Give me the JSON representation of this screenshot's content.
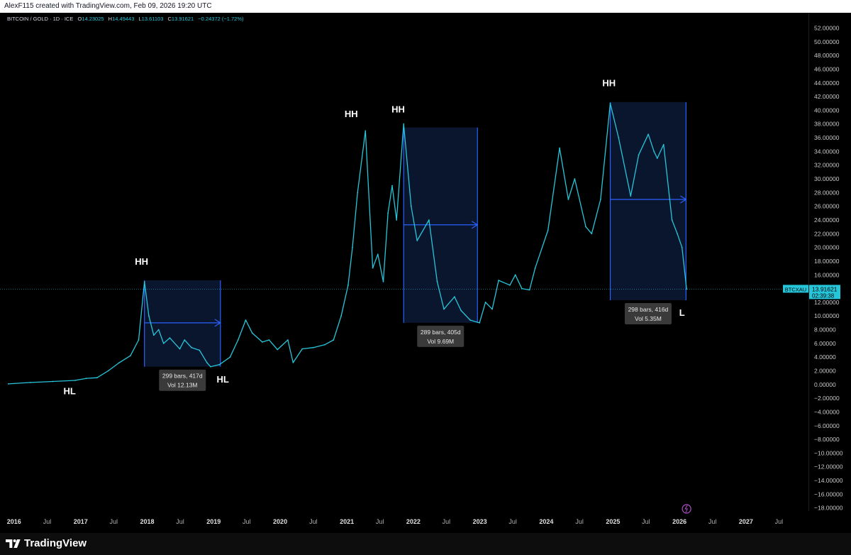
{
  "header": {
    "attribution": "AlexF115 created with TradingView.com, Feb 09, 2026 19:20 UTC"
  },
  "legend": {
    "symbol": "BITCOIN / GOLD · 1D · ICE",
    "o_label": "O",
    "o": "14.23025",
    "h_label": "H",
    "h": "14.49443",
    "l_label": "L",
    "l": "13.61103",
    "c_label": "C",
    "c": "13.91621",
    "change": "−0.24372 (−1.72%)"
  },
  "price_tag": {
    "symbol": "BTCXAU",
    "value": "13.91621",
    "countdown": "02:39:38"
  },
  "footer": {
    "brand": "TradingView"
  },
  "colors": {
    "price_line": "#26c6da",
    "box_fill": "#0b1733",
    "box_border": "#2962ff",
    "background": "#000000"
  },
  "chart_data": {
    "type": "line",
    "series": [
      {
        "x": [
          "2015-12-01",
          "2016-04-01",
          "2016-08-01",
          "2016-12-01",
          "2017-02-01",
          "2017-04-01",
          "2017-06-01",
          "2017-08-01",
          "2017-10-01",
          "2017-11-15",
          "2017-12-17",
          "2018-01-10",
          "2018-02-06",
          "2018-03-05",
          "2018-04-01",
          "2018-05-05",
          "2018-06-29",
          "2018-07-25",
          "2018-09-01",
          "2018-10-15",
          "2018-11-25",
          "2018-12-15",
          "2019-02-01",
          "2019-04-01",
          "2019-05-15",
          "2019-06-26",
          "2019-08-01",
          "2019-09-25",
          "2019-11-01",
          "2019-12-17",
          "2020-02-12",
          "2020-03-12",
          "2020-05-01",
          "2020-07-01",
          "2020-09-01",
          "2020-10-20",
          "2020-12-01",
          "2021-01-08",
          "2021-02-01",
          "2021-03-01",
          "2021-04-13",
          "2021-05-23",
          "2021-06-20",
          "2021-07-20",
          "2021-08-15",
          "2021-09-07",
          "2021-10-01",
          "2021-11-09",
          "2021-12-20",
          "2022-01-22",
          "2022-03-28",
          "2022-05-12",
          "2022-06-18",
          "2022-08-15",
          "2022-09-20",
          "2022-11-09",
          "2022-12-30",
          "2023-02-01",
          "2023-03-10",
          "2023-04-14",
          "2023-06-15",
          "2023-07-15",
          "2023-08-20",
          "2023-10-01",
          "2023-11-01",
          "2024-01-10",
          "2024-03-14",
          "2024-05-01",
          "2024-06-05",
          "2024-08-05",
          "2024-09-06",
          "2024-10-25",
          "2024-12-17",
          "2025-02-01",
          "2025-04-08",
          "2025-05-22",
          "2025-07-14",
          "2025-08-14",
          "2025-09-01",
          "2025-10-06",
          "2025-11-21",
          "2025-12-20",
          "2026-01-15",
          "2026-02-09"
        ],
        "values": [
          0.1,
          0.3,
          0.45,
          0.6,
          0.9,
          1.0,
          2.0,
          3.2,
          4.2,
          6.5,
          15.0,
          10.0,
          7.2,
          8.0,
          6.0,
          6.8,
          5.2,
          6.5,
          5.4,
          5.0,
          3.2,
          2.6,
          2.9,
          4.0,
          6.5,
          9.4,
          7.5,
          6.2,
          6.5,
          5.1,
          6.5,
          3.2,
          5.2,
          5.4,
          5.8,
          6.5,
          10.0,
          14.5,
          20.0,
          28.0,
          37.0,
          17.0,
          19.0,
          15.0,
          25.0,
          29.0,
          24.0,
          38.0,
          26.0,
          21.0,
          24.0,
          15.0,
          11.0,
          12.8,
          10.8,
          9.4,
          9.0,
          12.0,
          11.0,
          15.2,
          14.5,
          16.0,
          14.0,
          13.8,
          17.0,
          22.5,
          34.5,
          27.0,
          30.0,
          23.0,
          22.0,
          27.0,
          41.0,
          36.0,
          27.5,
          33.5,
          36.5,
          34.0,
          33.0,
          35.0,
          24.0,
          22.0,
          20.0,
          13.91621
        ]
      }
    ],
    "ylim": [
      -18,
      52
    ],
    "y_ticks": [
      "52.00000",
      "50.00000",
      "48.00000",
      "46.00000",
      "44.00000",
      "42.00000",
      "40.00000",
      "38.00000",
      "36.00000",
      "34.00000",
      "32.00000",
      "30.00000",
      "28.00000",
      "26.00000",
      "24.00000",
      "22.00000",
      "20.00000",
      "18.00000",
      "16.00000",
      "14.00000",
      "12.00000",
      "10.00000",
      "8.00000",
      "6.00000",
      "4.00000",
      "2.00000",
      "0.00000",
      "−2.00000",
      "−4.00000",
      "−6.00000",
      "−8.00000",
      "−10.00000",
      "−12.00000",
      "−14.00000",
      "−16.00000",
      "−18.00000"
    ],
    "y_tick_values": [
      52,
      50,
      48,
      46,
      44,
      42,
      40,
      38,
      36,
      34,
      32,
      30,
      28,
      26,
      24,
      22,
      20,
      18,
      16,
      14,
      12,
      10,
      8,
      6,
      4,
      2,
      0,
      -2,
      -4,
      -6,
      -8,
      -10,
      -12,
      -14,
      -16,
      -18
    ],
    "x_range": [
      "2015-10-16",
      "2027-12-10"
    ],
    "x_ticks": [
      {
        "label": "2016",
        "date": "2016-01-01",
        "bold": true
      },
      {
        "label": "Jul",
        "date": "2016-07-01",
        "bold": false
      },
      {
        "label": "2017",
        "date": "2017-01-01",
        "bold": true
      },
      {
        "label": "Jul",
        "date": "2017-07-01",
        "bold": false
      },
      {
        "label": "2018",
        "date": "2018-01-01",
        "bold": true
      },
      {
        "label": "Jul",
        "date": "2018-07-01",
        "bold": false
      },
      {
        "label": "2019",
        "date": "2019-01-01",
        "bold": true
      },
      {
        "label": "Jul",
        "date": "2019-07-01",
        "bold": false
      },
      {
        "label": "2020",
        "date": "2020-01-01",
        "bold": true
      },
      {
        "label": "Jul",
        "date": "2020-07-01",
        "bold": false
      },
      {
        "label": "2021",
        "date": "2021-01-01",
        "bold": true
      },
      {
        "label": "Jul",
        "date": "2021-07-01",
        "bold": false
      },
      {
        "label": "2022",
        "date": "2022-01-01",
        "bold": true
      },
      {
        "label": "Jul",
        "date": "2022-07-01",
        "bold": false
      },
      {
        "label": "2023",
        "date": "2023-01-01",
        "bold": true
      },
      {
        "label": "Jul",
        "date": "2023-07-01",
        "bold": false
      },
      {
        "label": "2024",
        "date": "2024-01-01",
        "bold": true
      },
      {
        "label": "Jul",
        "date": "2024-07-01",
        "bold": false
      },
      {
        "label": "2025",
        "date": "2025-01-01",
        "bold": true
      },
      {
        "label": "Jul",
        "date": "2025-07-01",
        "bold": false
      },
      {
        "label": "2026",
        "date": "2026-01-01",
        "bold": true
      },
      {
        "label": "Jul",
        "date": "2026-07-01",
        "bold": false
      },
      {
        "label": "2027",
        "date": "2027-01-01",
        "bold": true
      },
      {
        "label": "Jul",
        "date": "2027-07-01",
        "bold": false
      }
    ],
    "last_price": 13.91621,
    "annotations": [
      {
        "text": "HH",
        "date": "2017-12-01",
        "value": 17.5
      },
      {
        "text": "HL",
        "date": "2016-11-01",
        "value": -1.4
      },
      {
        "text": "HL",
        "date": "2019-02-20",
        "value": 0.3
      },
      {
        "text": "HH",
        "date": "2021-01-25",
        "value": 39.0
      },
      {
        "text": "HH",
        "date": "2021-10-10",
        "value": 39.7
      },
      {
        "text": "HH",
        "date": "2024-12-10",
        "value": 43.5
      },
      {
        "text": "L",
        "date": "2026-01-15",
        "value": 10.0
      }
    ],
    "measure_boxes": [
      {
        "start": "2017-12-17",
        "end": "2019-02-07",
        "high": 15.2,
        "low": 2.6,
        "label": "299 bars, 417d",
        "vol": "Vol 12.13M",
        "arrow_value": 9.0
      },
      {
        "start": "2021-11-09",
        "end": "2022-12-19",
        "high": 37.5,
        "low": 9.0,
        "label": "289 bars, 405d",
        "vol": "Vol 9.69M",
        "arrow_value": 23.3
      },
      {
        "start": "2024-12-17",
        "end": "2026-02-06",
        "high": 41.2,
        "low": 12.3,
        "label": "298 bars, 416d",
        "vol": "Vol 5.35M",
        "arrow_value": 27.0
      }
    ]
  }
}
